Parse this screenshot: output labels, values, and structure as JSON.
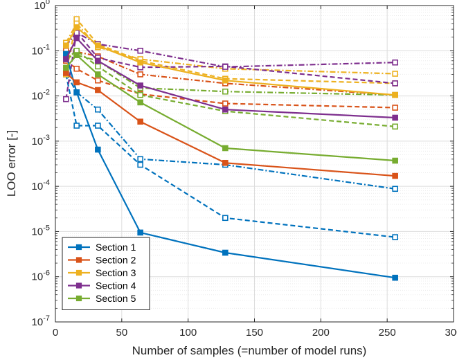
{
  "chart_data": {
    "type": "line",
    "title": "",
    "xlabel": "Number of samples (=number of model runs)",
    "ylabel": "LOO error [-]",
    "xlim": [
      0,
      300
    ],
    "ylim": [
      1e-07,
      1
    ],
    "yscale": "log",
    "grid": true,
    "legend_position": "bottom-left",
    "x_ticks": [
      "0",
      "50",
      "100",
      "150",
      "200",
      "250",
      "300"
    ],
    "y_ticks": [
      {
        "base": "10",
        "exp": "0"
      },
      {
        "base": "10",
        "exp": "-1"
      },
      {
        "base": "10",
        "exp": "-2"
      },
      {
        "base": "10",
        "exp": "-3"
      },
      {
        "base": "10",
        "exp": "-4"
      },
      {
        "base": "10",
        "exp": "-5"
      },
      {
        "base": "10",
        "exp": "-6"
      },
      {
        "base": "10",
        "exp": "-7"
      }
    ],
    "x": [
      8,
      16,
      32,
      64,
      128,
      256
    ],
    "series": [
      {
        "name": "Section 1",
        "color": "#0072bd",
        "values": [
          0.085,
          0.012,
          0.00065,
          9.5e-06,
          3.4e-06,
          9.5e-07
        ]
      },
      {
        "name": "Section 2",
        "color": "#d95319",
        "values": [
          0.032,
          0.02,
          0.0135,
          0.0027,
          0.00033,
          0.00017
        ]
      },
      {
        "name": "Section 3",
        "color": "#edb120",
        "values": [
          0.13,
          0.33,
          0.13,
          0.055,
          0.022,
          0.0105
        ]
      },
      {
        "name": "Section 4",
        "color": "#7e2f8e",
        "values": [
          0.065,
          0.19,
          0.06,
          0.017,
          0.005,
          0.0033
        ]
      },
      {
        "name": "Section 5",
        "color": "#77ac30",
        "values": [
          0.042,
          0.08,
          0.03,
          0.0072,
          0.0007,
          0.00037
        ]
      }
    ],
    "unlabeled_series": [
      {
        "style": "dashed",
        "color": "#0072bd",
        "values": [
          0.03,
          0.0022,
          0.0022,
          0.0003,
          2e-05,
          7.5e-06
        ]
      },
      {
        "style": "dashdot",
        "color": "#0072bd",
        "values": [
          0.032,
          0.012,
          0.005,
          0.0004,
          0.0003,
          8.8e-05
        ]
      },
      {
        "style": "dashed",
        "color": "#d95319",
        "values": [
          0.06,
          0.04,
          0.022,
          0.011,
          0.0068,
          0.0055
        ]
      },
      {
        "style": "dashdot",
        "color": "#d95319",
        "values": [
          0.1,
          0.095,
          0.075,
          0.03,
          0.019,
          0.0105
        ]
      },
      {
        "style": "dashed",
        "color": "#edb120",
        "values": [
          0.03,
          0.5,
          0.14,
          0.06,
          0.024,
          0.019
        ]
      },
      {
        "style": "dashdot",
        "color": "#edb120",
        "values": [
          0.15,
          0.4,
          0.12,
          0.065,
          0.04,
          0.031
        ]
      },
      {
        "style": "dashed",
        "color": "#7e2f8e",
        "values": [
          0.0085,
          0.26,
          0.07,
          0.043,
          0.045,
          0.019
        ]
      },
      {
        "style": "dashdot",
        "color": "#7e2f8e",
        "values": [
          0.13,
          0.25,
          0.14,
          0.1,
          0.044,
          0.055
        ]
      },
      {
        "style": "dashed",
        "color": "#77ac30",
        "values": [
          0.065,
          0.1,
          0.045,
          0.0105,
          0.0046,
          0.0021
        ]
      },
      {
        "style": "dashdot",
        "color": "#77ac30",
        "values": [
          0.07,
          0.08,
          0.06,
          0.015,
          0.0125,
          0.0105
        ]
      }
    ]
  }
}
